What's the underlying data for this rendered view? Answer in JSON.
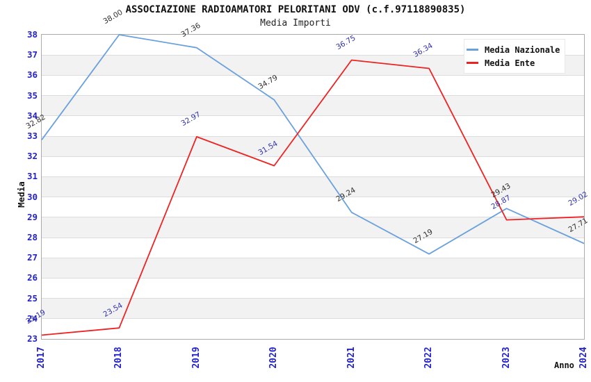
{
  "title": "ASSOCIAZIONE RADIOAMATORI PELORITANI ODV (c.f.97118890835)",
  "subtitle": "Media Importi",
  "y_axis_title": "Media",
  "x_axis_title": "Anno",
  "colors": {
    "background": "#ffffff",
    "plot_border": "#aaaaaa",
    "grid_line": "#dcdcdc",
    "band": "#f2f2f2",
    "tick_label": "#2222cc"
  },
  "chart_data": {
    "type": "line",
    "x": [
      "2017",
      "2018",
      "2019",
      "2020",
      "2021",
      "2022",
      "2023",
      "2024"
    ],
    "series": [
      {
        "name": "Media Nazionale",
        "color": "#6aa1dc",
        "label_color": "#2e2e2e",
        "values": [
          32.82,
          38.0,
          37.36,
          34.79,
          29.24,
          27.19,
          29.43,
          27.71
        ]
      },
      {
        "name": "Media Ente",
        "color": "#ee2222",
        "label_color": "#3232aa",
        "values": [
          23.19,
          23.54,
          32.97,
          31.54,
          36.75,
          36.34,
          28.87,
          29.02
        ]
      }
    ],
    "ylim": [
      23,
      38
    ],
    "ytick_step": 1,
    "grid": true,
    "banded_background": true,
    "value_label_format": "2-decimals",
    "legend_position": "top-right"
  }
}
